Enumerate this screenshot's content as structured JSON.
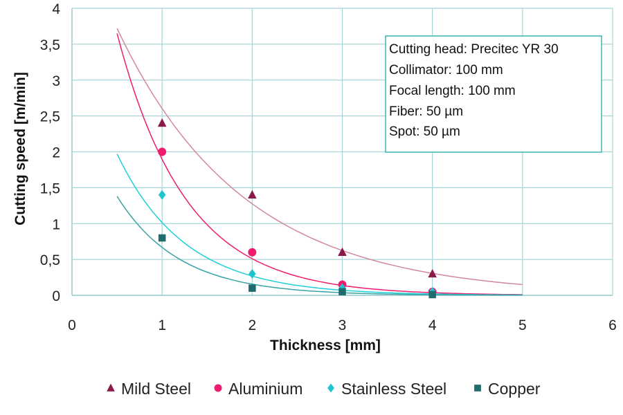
{
  "chart_data": {
    "type": "scatter",
    "xlabel": "Thickness [mm]",
    "ylabel": "Cutting speed [m/min]",
    "xlim": [
      0,
      6
    ],
    "ylim": [
      0,
      4
    ],
    "x_ticks": [
      "0",
      "1",
      "2",
      "3",
      "4",
      "5",
      "6"
    ],
    "y_ticks": [
      "0",
      "0,5",
      "1",
      "1,5",
      "2",
      "2,5",
      "3",
      "3,5",
      "4"
    ],
    "grid": true,
    "legend_position": "bottom",
    "trendline_type": "exponential",
    "annotation": [
      "Cutting head: Precitec YR 30",
      "Collimator: 100 mm",
      "Focal length: 100 mm",
      "Fiber: 50 µm",
      "Spot: 50 µm"
    ],
    "series": [
      {
        "name": "Mild Steel",
        "marker": "triangle",
        "color": "#8b1a4a",
        "trend_color": "#d4869e",
        "x": [
          1,
          2,
          3,
          4
        ],
        "y": [
          2.4,
          1.4,
          0.6,
          0.3
        ],
        "trend_x": [
          0.5,
          5
        ],
        "trend_y": [
          3.72,
          0.15
        ]
      },
      {
        "name": "Aluminium",
        "marker": "circle",
        "color": "#ee1c6e",
        "trend_color": "#ee1c6e",
        "x": [
          1,
          2,
          3,
          4
        ],
        "y": [
          2.0,
          0.6,
          0.15,
          0.05
        ],
        "trend_x": [
          0.5,
          5
        ],
        "trend_y": [
          3.65,
          0.01
        ]
      },
      {
        "name": "Stainless Steel",
        "marker": "diamond",
        "color": "#1fc4cf",
        "trend_color": "#1fd0d8",
        "x": [
          1,
          2,
          3,
          4
        ],
        "y": [
          1.4,
          0.3,
          0.1,
          0.05
        ],
        "trend_x": [
          0.5,
          5
        ],
        "trend_y": [
          1.97,
          0.005
        ]
      },
      {
        "name": "Copper",
        "marker": "square",
        "color": "#1f6b6e",
        "trend_color": "#3aa3a3",
        "x": [
          1,
          2,
          3,
          4
        ],
        "y": [
          0.8,
          0.1,
          0.05,
          0.01
        ],
        "trend_x": [
          0.5,
          5
        ],
        "trend_y": [
          1.38,
          0.002
        ]
      }
    ]
  },
  "colors": {
    "grid": "#a9d4d6",
    "axis": "#7fbfc2",
    "annotation_border": "#3ab5b0"
  }
}
